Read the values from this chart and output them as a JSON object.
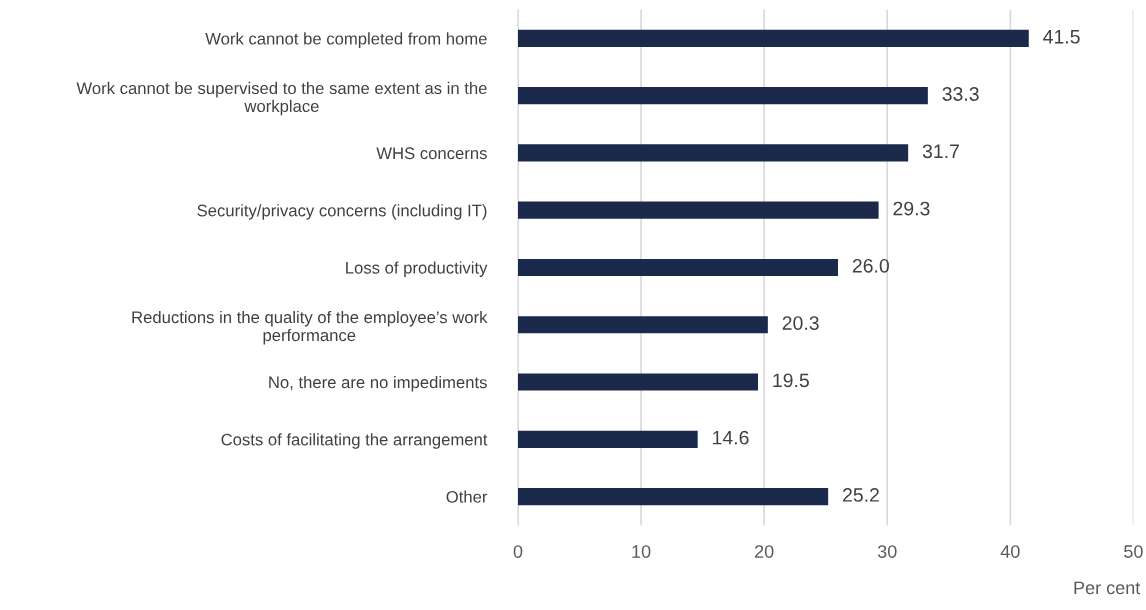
{
  "chart_data": {
    "type": "bar",
    "orientation": "horizontal",
    "xlabel": "Per cent",
    "categories": [
      "Work cannot be completed from home",
      "Work cannot be supervised to the same extent as in the\nworkplace",
      "WHS concerns",
      "Security/privacy concerns (including IT)",
      "Loss of productivity",
      "Reductions in the quality of the employee’s work\nperformance",
      "No, there are no impediments",
      "Costs of facilitating the arrangement",
      "Other"
    ],
    "values": [
      41.5,
      33.3,
      31.7,
      29.3,
      26.0,
      20.3,
      19.5,
      14.6,
      25.2
    ],
    "value_labels": [
      "41.5",
      "33.3",
      "31.7",
      "29.3",
      "26.0",
      "20.3",
      "19.5",
      "14.6",
      "25.2"
    ],
    "color": "#1b2a4a",
    "xlim": [
      0,
      50
    ],
    "xticks": [
      0,
      10,
      20,
      30,
      40,
      50
    ],
    "grid": "x",
    "legend": false
  }
}
